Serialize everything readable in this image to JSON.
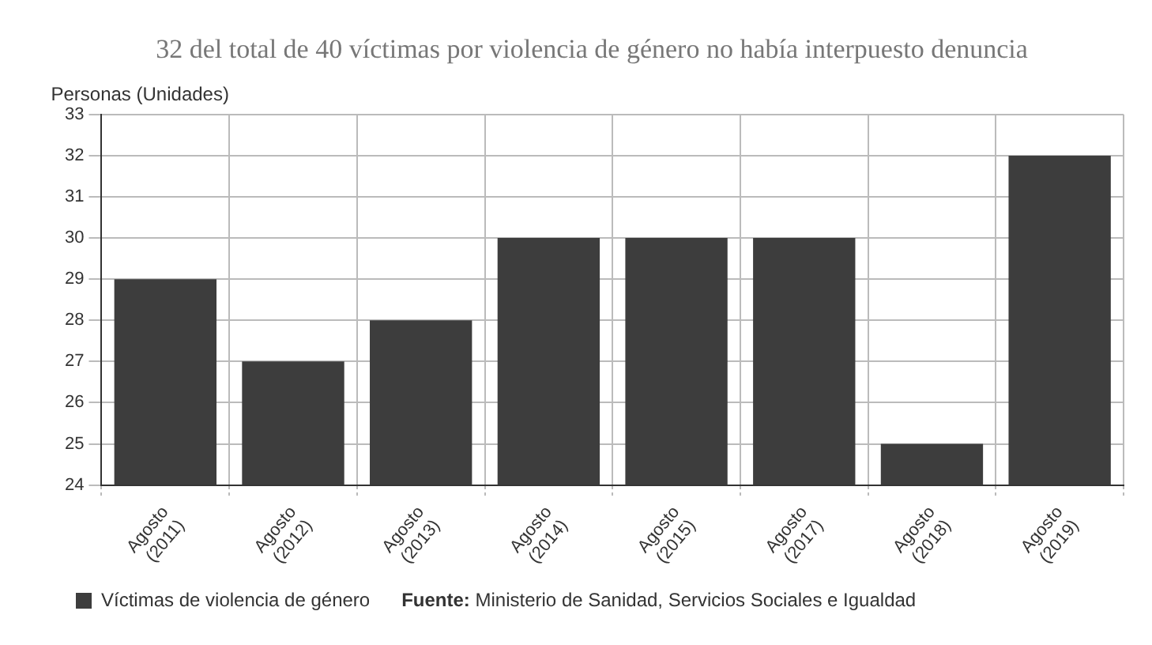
{
  "chart_data": {
    "type": "bar",
    "title": "32 del total de 40 víctimas por violencia de género no había interpuesto denuncia",
    "ylabel": "Personas (Unidades)",
    "categories": [
      "Agosto (2011)",
      "Agosto (2012)",
      "Agosto (2013)",
      "Agosto (2014)",
      "Agosto (2015)",
      "Agosto (2017)",
      "Agosto (2018)",
      "Agosto (2019)"
    ],
    "series": [
      {
        "name": "Víctimas de violencia de género",
        "color": "#3d3d3d",
        "values": [
          29,
          27,
          28,
          30,
          30,
          30,
          25,
          32
        ]
      }
    ],
    "ylim": [
      24,
      33
    ],
    "yticks": [
      24,
      25,
      26,
      27,
      28,
      29,
      30,
      31,
      32,
      33
    ],
    "grid": true,
    "legend": "bottom",
    "annotations": [
      "Fuente: Ministerio de Sanidad, Servicios Sociales e Igualdad"
    ]
  }
}
